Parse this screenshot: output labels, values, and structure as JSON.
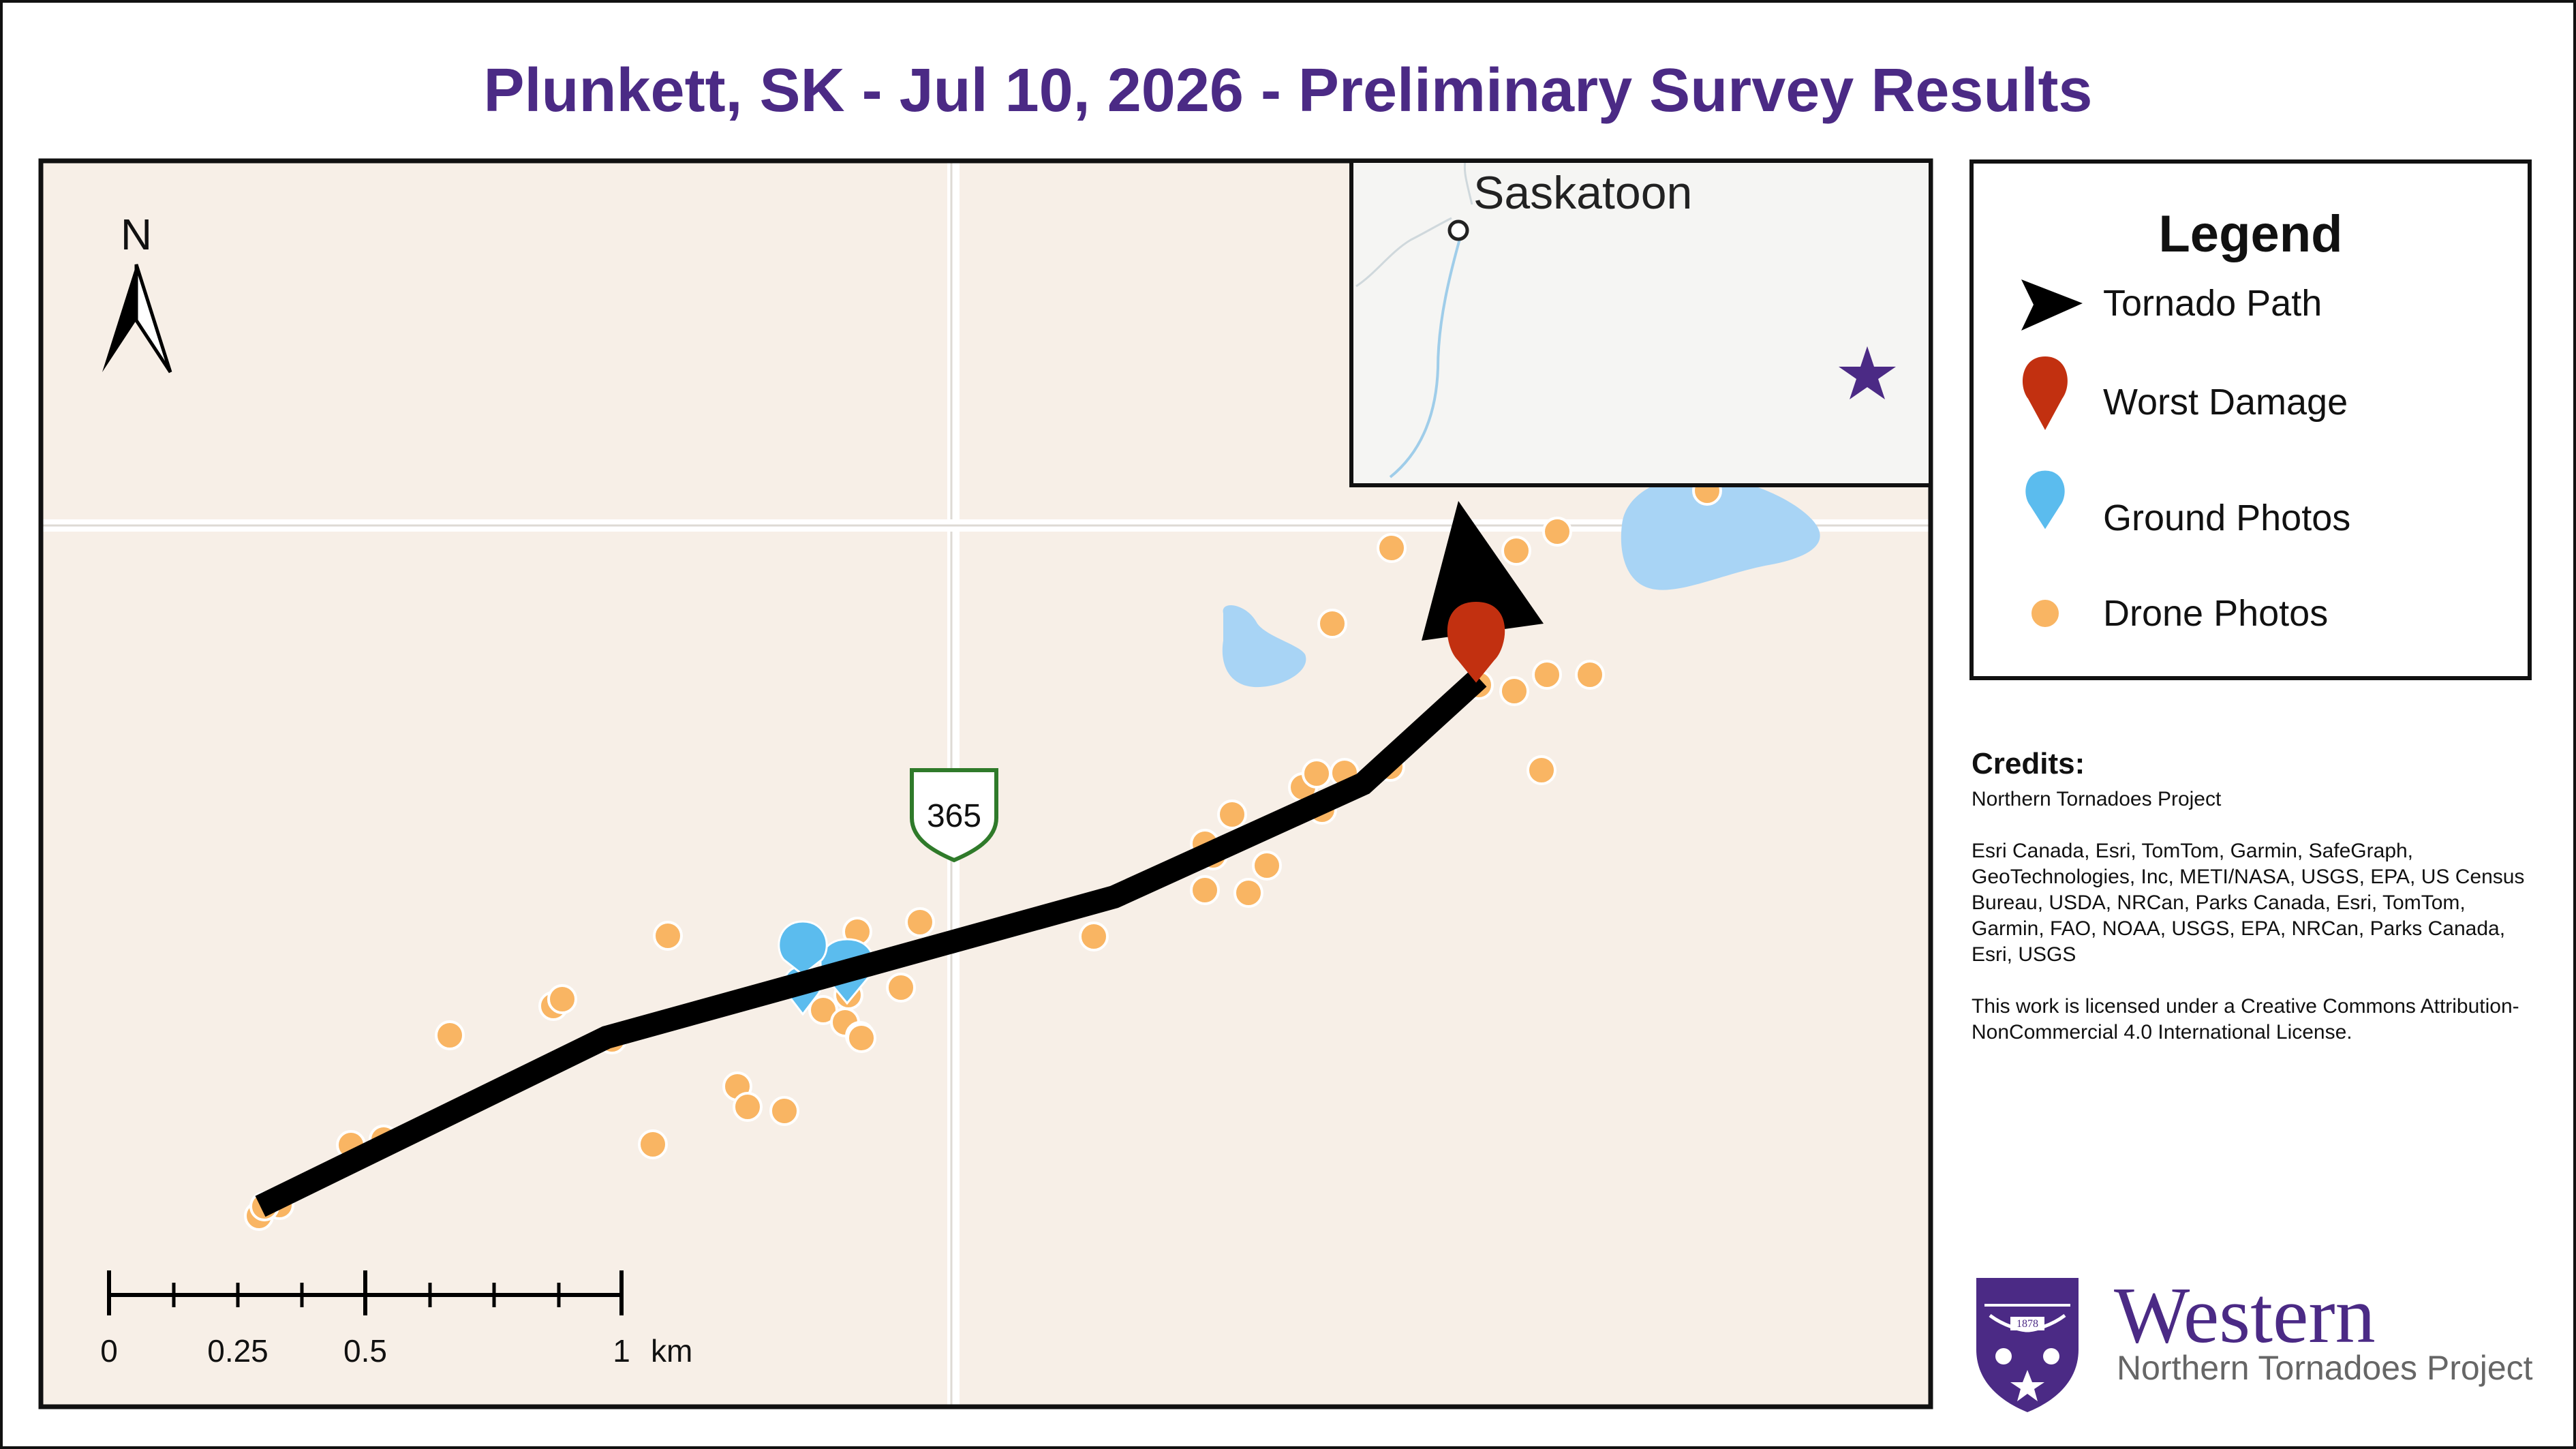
{
  "title": "Plunkett, SK - Jul 10, 2026 - Preliminary Survey Results",
  "colors": {
    "title": "#4b2a85",
    "land": "#f7efe7",
    "road": "#ffffff",
    "water": "#a8d4f5",
    "tornado_path": "#000000",
    "worst_damage": "#c23010",
    "ground_photos": "#5bbcee",
    "drone_photos": "#f9b563",
    "inset_star": "#4b2a85",
    "highway_shield": "#2f7a2a"
  },
  "map": {
    "north_label": "N",
    "highway_shield": "365",
    "scale_bar": {
      "labels": [
        "0",
        "0.25",
        "0.5",
        "1"
      ],
      "unit": "km"
    },
    "inset": {
      "city_label": "Saskatoon",
      "marker_icon": "star-icon"
    }
  },
  "legend": {
    "title": "Legend",
    "items": [
      {
        "label": "Tornado Path",
        "icon": "arrow-icon"
      },
      {
        "label": "Worst Damage",
        "icon": "red-pin-icon"
      },
      {
        "label": "Ground Photos",
        "icon": "blue-pin-icon"
      },
      {
        "label": "Drone Photos",
        "icon": "orange-dot-icon"
      }
    ]
  },
  "credits": {
    "title": "Credits:",
    "lines": [
      "Northern Tornadoes Project",
      "Esri Canada, Esri, TomTom, Garmin, SafeGraph, GeoTechnologies, Inc, METI/NASA, USGS, EPA, US Census Bureau, USDA, NRCan, Parks Canada, Esri, TomTom, Garmin, FAO, NOAA, USGS, EPA, NRCan, Parks Canada, Esri, USGS",
      "This work is licensed under a Creative Commons Attribution-NonCommercial 4.0 International License."
    ]
  },
  "logo": {
    "name": "Western",
    "subtitle": "Northern Tornadoes Project",
    "shield_year": "1878"
  }
}
